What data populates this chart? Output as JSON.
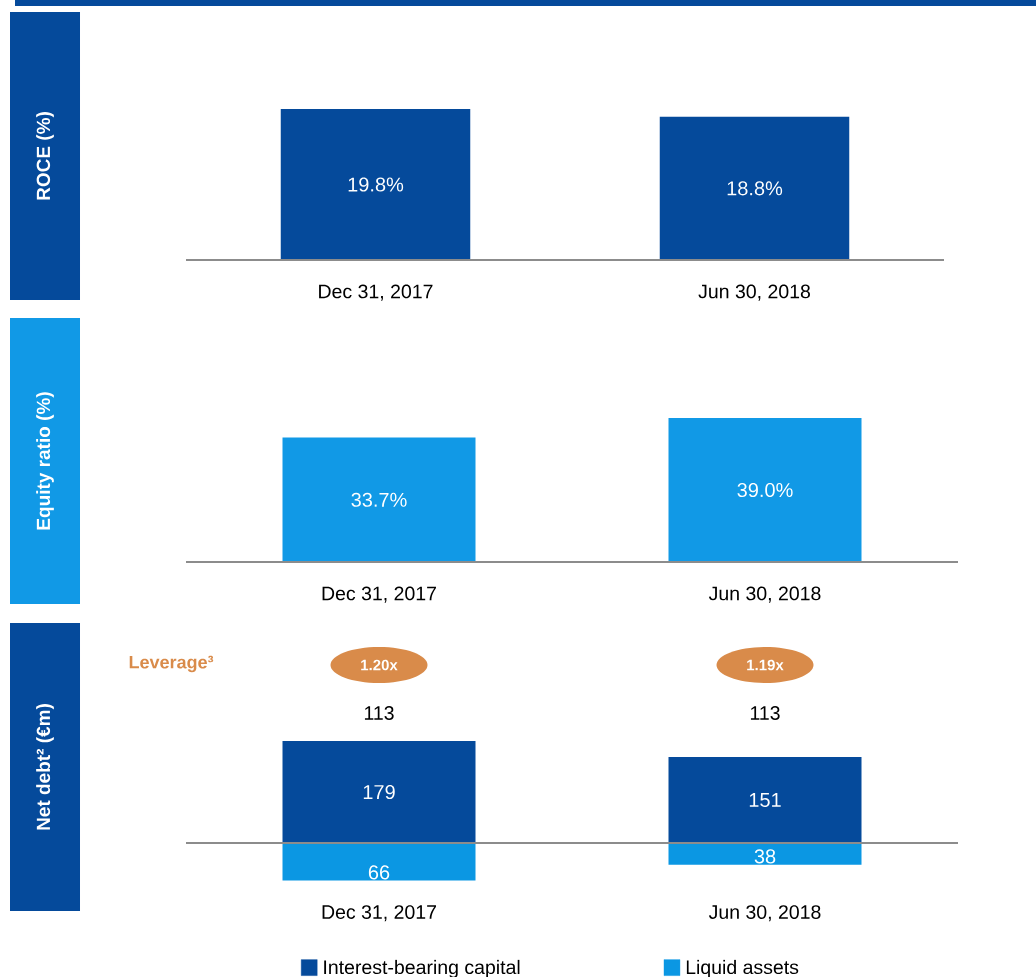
{
  "chart_data": [
    {
      "type": "bar",
      "ylabel": "ROCE (%)",
      "categories": [
        "Dec 31, 2017",
        "Jun 30, 2018"
      ],
      "values": [
        19.8,
        18.8
      ],
      "value_labels": [
        "19.8%",
        "18.8%"
      ],
      "color": "#054a9b"
    },
    {
      "type": "bar",
      "ylabel": "Equity ratio (%)",
      "categories": [
        "Dec 31, 2017",
        "Jun 30, 2018"
      ],
      "values": [
        33.7,
        39.0
      ],
      "value_labels": [
        "33.7%",
        "39.0%"
      ],
      "color": "#1199e6"
    },
    {
      "type": "bar",
      "ylabel": "Net debt² (€m)",
      "categories": [
        "Dec 31, 2017",
        "Jun 30, 2018"
      ],
      "stacked": true,
      "series": [
        {
          "name": "Interest-bearing capital",
          "color": "#054a9b",
          "values": [
            179,
            151
          ],
          "value_labels": [
            "179",
            "151"
          ]
        },
        {
          "name": "Liquid assets",
          "color": "#0b97e3",
          "values": [
            -66,
            -38
          ]
        }
      ],
      "totals": [
        "113",
        "113"
      ],
      "annotations": [
        "Leverage³",
        "1.20x",
        "1.19x",
        {
          "text": "66",
          "x": "Dec 31, 2017",
          "y": -66
        },
        {
          "text": "38",
          "x": "Jun 30, 2018",
          "y": -38
        }
      ],
      "legend": "bottom"
    }
  ]
}
